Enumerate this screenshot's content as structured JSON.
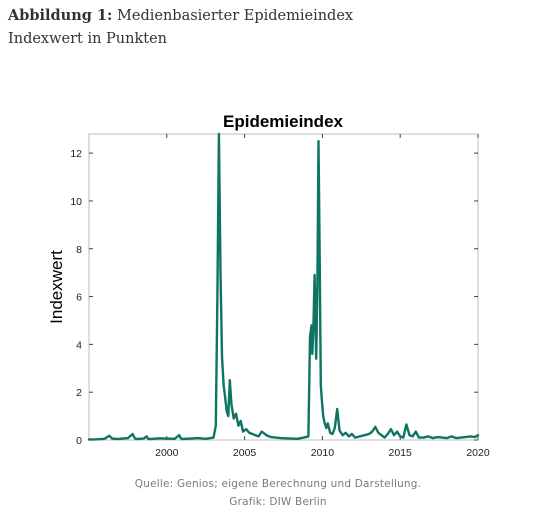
{
  "figure": {
    "label": "Abbildung 1:",
    "title": "Medienbasierter Epidemieindex",
    "subtitle": "Indexwert in Punkten"
  },
  "source": {
    "line1": "Quelle: Genios; eigene Berechnung und Darstellung.",
    "line2": "Grafik: DIW Berlin"
  },
  "chart_data": {
    "type": "line",
    "title": "Epidemieindex",
    "xlabel": "",
    "ylabel": "Indexwert",
    "xlim": [
      1995,
      2020
    ],
    "ylim": [
      0,
      12.8
    ],
    "xticks": [
      2000,
      2005,
      2010,
      2015,
      2020
    ],
    "yticks": [
      0,
      2,
      4,
      6,
      8,
      10,
      12
    ],
    "grid": false,
    "color": "#0e7563",
    "series": [
      {
        "name": "",
        "x": [
          1995.0,
          1995.5,
          1996.0,
          1996.3,
          1996.5,
          1996.8,
          1997.0,
          1997.5,
          1997.8,
          1997.9,
          1998.0,
          1998.5,
          1998.7,
          1998.8,
          1999.0,
          1999.5,
          2000.0,
          2000.5,
          2000.8,
          2000.9,
          2001.0,
          2001.5,
          2002.0,
          2002.5,
          2003.0,
          2003.15,
          2003.25,
          2003.35,
          2003.45,
          2003.55,
          2003.65,
          2003.75,
          2003.85,
          2003.95,
          2004.05,
          2004.15,
          2004.3,
          2004.45,
          2004.6,
          2004.75,
          2004.9,
          2005.1,
          2005.3,
          2005.5,
          2005.7,
          2005.9,
          2006.1,
          2006.4,
          2006.7,
          2007.0,
          2007.3,
          2007.6,
          2008.0,
          2008.4,
          2008.8,
          2009.1,
          2009.2,
          2009.3,
          2009.35,
          2009.42,
          2009.5,
          2009.55,
          2009.6,
          2009.68,
          2009.75,
          2009.82,
          2009.9,
          2009.95,
          2010.05,
          2010.15,
          2010.25,
          2010.35,
          2010.5,
          2010.65,
          2010.8,
          2010.95,
          2011.1,
          2011.3,
          2011.5,
          2011.7,
          2011.9,
          2012.1,
          2012.4,
          2012.7,
          2013.0,
          2013.2,
          2013.4,
          2013.6,
          2013.8,
          2014.0,
          2014.2,
          2014.4,
          2014.6,
          2014.8,
          2015.0,
          2015.2,
          2015.4,
          2015.6,
          2015.8,
          2016.0,
          2016.2,
          2016.5,
          2016.8,
          2017.1,
          2017.4,
          2017.7,
          2018.0,
          2018.3,
          2018.6,
          2018.9,
          2019.2,
          2019.5,
          2019.8,
          2020.0
        ],
        "y": [
          0.02,
          0.03,
          0.05,
          0.18,
          0.06,
          0.04,
          0.05,
          0.08,
          0.25,
          0.12,
          0.04,
          0.06,
          0.15,
          0.05,
          0.04,
          0.07,
          0.06,
          0.05,
          0.2,
          0.07,
          0.04,
          0.06,
          0.08,
          0.05,
          0.1,
          0.6,
          6.0,
          12.8,
          7.0,
          3.5,
          2.3,
          1.8,
          1.2,
          1.0,
          2.5,
          1.5,
          0.9,
          1.1,
          0.6,
          0.8,
          0.35,
          0.45,
          0.3,
          0.25,
          0.2,
          0.15,
          0.35,
          0.2,
          0.12,
          0.1,
          0.08,
          0.07,
          0.06,
          0.05,
          0.1,
          0.15,
          4.3,
          4.8,
          3.6,
          4.7,
          6.9,
          5.2,
          3.4,
          6.5,
          12.5,
          8.0,
          2.3,
          1.8,
          1.0,
          0.7,
          0.5,
          0.7,
          0.3,
          0.25,
          0.5,
          1.3,
          0.4,
          0.2,
          0.3,
          0.15,
          0.25,
          0.1,
          0.15,
          0.2,
          0.25,
          0.35,
          0.55,
          0.3,
          0.2,
          0.1,
          0.25,
          0.45,
          0.2,
          0.35,
          0.15,
          0.1,
          0.65,
          0.2,
          0.15,
          0.35,
          0.1,
          0.1,
          0.15,
          0.08,
          0.12,
          0.1,
          0.08,
          0.15,
          0.08,
          0.1,
          0.12,
          0.15,
          0.12,
          0.2
        ]
      }
    ]
  }
}
